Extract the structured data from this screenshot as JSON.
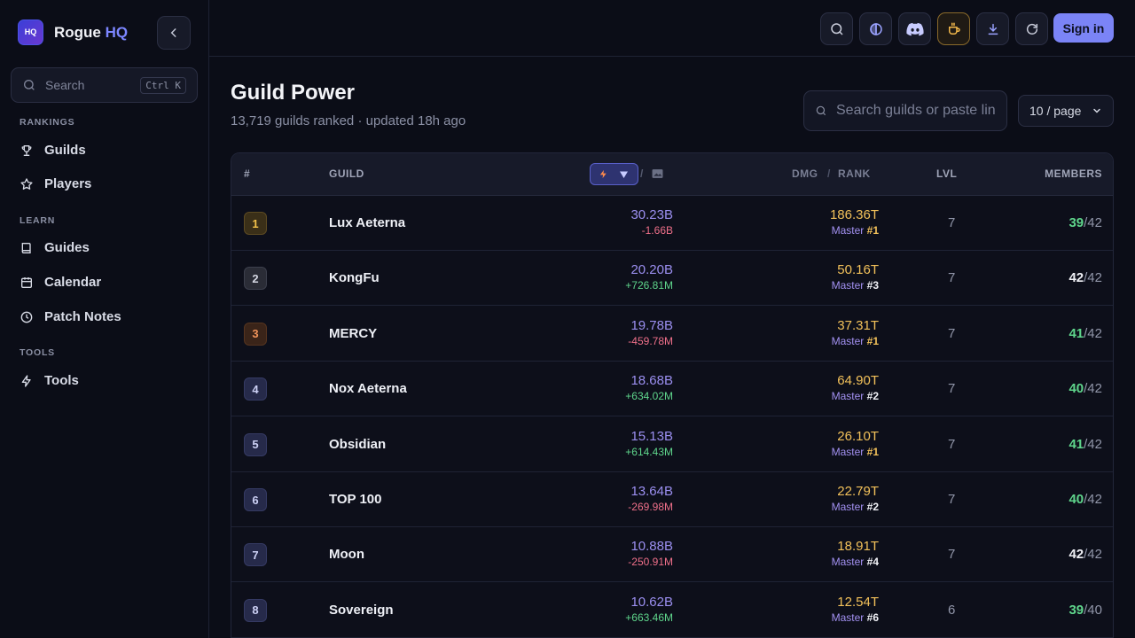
{
  "brand": {
    "name": "Rogue",
    "accent": "HQ",
    "logo_text": "HQ"
  },
  "sidebar": {
    "search_placeholder": "Search",
    "search_shortcut": "Ctrl K",
    "sections": [
      {
        "title": "RANKINGS",
        "items": [
          {
            "label": "Guilds",
            "icon": "trophy-icon"
          },
          {
            "label": "Players",
            "icon": "star-icon"
          }
        ]
      },
      {
        "title": "LEARN",
        "items": [
          {
            "label": "Guides",
            "icon": "book-icon"
          },
          {
            "label": "Calendar",
            "icon": "calendar-icon"
          },
          {
            "label": "Patch Notes",
            "icon": "clock-icon"
          }
        ]
      },
      {
        "title": "TOOLS",
        "items": [
          {
            "label": "Tools",
            "icon": "bolt-icon"
          }
        ]
      }
    ]
  },
  "topbar": {
    "signin_label": "Sign in"
  },
  "page": {
    "title": "Guild Power",
    "subtitle": "13,719 guilds ranked · updated 18h ago",
    "search_placeholder": "Search guilds or paste link",
    "per_page": "10 / page"
  },
  "table": {
    "headers": {
      "rank": "#",
      "guild": "GUILD",
      "dmg": "DMG",
      "dmg_rank": "RANK",
      "lvl": "LVL",
      "members": "MEMBERS"
    },
    "rows": [
      {
        "rank": "1",
        "name": "Lux Aeterna",
        "power": "30.23B",
        "delta": "-1.66B",
        "delta_sign": "neg",
        "dmg": "186.36T",
        "tier": "Master",
        "tier_rank": "#1",
        "lvl": "7",
        "members": "39",
        "max": "/42"
      },
      {
        "rank": "2",
        "name": "KongFu",
        "power": "20.20B",
        "delta": "+726.81M",
        "delta_sign": "pos",
        "dmg": "50.16T",
        "tier": "Master",
        "tier_rank": "#3",
        "lvl": "7",
        "members": "42",
        "max": "/42"
      },
      {
        "rank": "3",
        "name": "MERCY",
        "power": "19.78B",
        "delta": "-459.78M",
        "delta_sign": "neg",
        "dmg": "37.31T",
        "tier": "Master",
        "tier_rank": "#1",
        "lvl": "7",
        "members": "41",
        "max": "/42"
      },
      {
        "rank": "4",
        "name": "Nox Aeterna",
        "power": "18.68B",
        "delta": "+634.02M",
        "delta_sign": "pos",
        "dmg": "64.90T",
        "tier": "Master",
        "tier_rank": "#2",
        "lvl": "7",
        "members": "40",
        "max": "/42"
      },
      {
        "rank": "5",
        "name": "Obsidian",
        "power": "15.13B",
        "delta": "+614.43M",
        "delta_sign": "pos",
        "dmg": "26.10T",
        "tier": "Master",
        "tier_rank": "#1",
        "lvl": "7",
        "members": "41",
        "max": "/42"
      },
      {
        "rank": "6",
        "name": "TOP 100",
        "power": "13.64B",
        "delta": "-269.98M",
        "delta_sign": "neg",
        "dmg": "22.79T",
        "tier": "Master",
        "tier_rank": "#2",
        "lvl": "7",
        "members": "40",
        "max": "/42"
      },
      {
        "rank": "7",
        "name": "Moon",
        "power": "10.88B",
        "delta": "-250.91M",
        "delta_sign": "neg",
        "dmg": "18.91T",
        "tier": "Master",
        "tier_rank": "#4",
        "lvl": "7",
        "members": "42",
        "max": "/42"
      },
      {
        "rank": "8",
        "name": "Sovereign",
        "power": "10.62B",
        "delta": "+663.46M",
        "delta_sign": "pos",
        "dmg": "12.54T",
        "tier": "Master",
        "tier_rank": "#6",
        "lvl": "6",
        "members": "39",
        "max": "/40"
      }
    ]
  }
}
